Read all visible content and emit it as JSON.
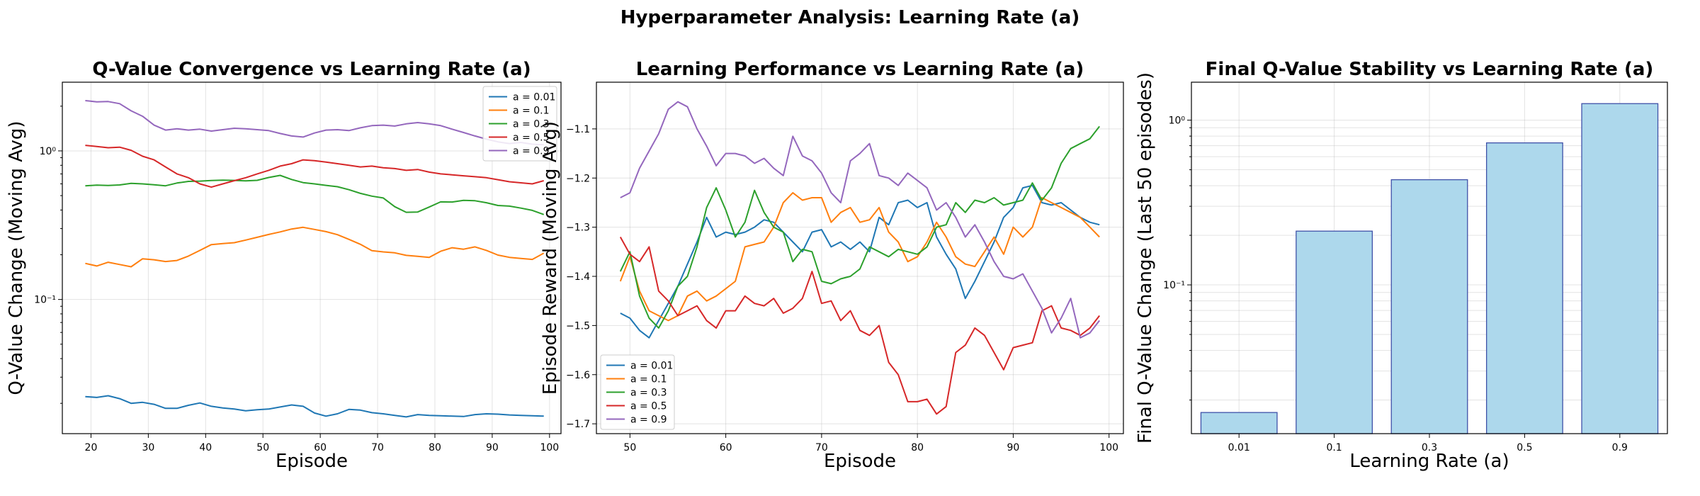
{
  "suptitle": "Hyperparameter Analysis: Learning Rate (a)",
  "chart_data": [
    {
      "type": "line",
      "title": "Q-Value Convergence vs Learning Rate (a)",
      "xlabel": "Episode",
      "ylabel": "Q-Value Change (Moving Avg)",
      "xlim": [
        15,
        102
      ],
      "xticks": [
        20,
        30,
        40,
        50,
        60,
        70,
        80,
        90,
        100
      ],
      "ylim": [
        0.0125,
        2.9
      ],
      "yscale": "log",
      "yticks": [
        {
          "value": 0.1,
          "label": "10⁻¹"
        },
        {
          "value": 1,
          "label": "10⁰"
        }
      ],
      "grid": true,
      "legend": "top-right",
      "x": [
        19,
        21,
        23,
        25,
        27,
        29,
        31,
        33,
        35,
        37,
        39,
        41,
        43,
        45,
        47,
        49,
        51,
        53,
        55,
        57,
        59,
        61,
        63,
        65,
        67,
        69,
        71,
        73,
        75,
        77,
        79,
        81,
        83,
        85,
        87,
        89,
        91,
        93,
        95,
        97,
        99
      ],
      "series": [
        {
          "name": "a = 0.01",
          "color": "#1f77b4",
          "values": [
            0.0222,
            0.0219,
            0.0225,
            0.0215,
            0.02,
            0.0203,
            0.0197,
            0.0185,
            0.0185,
            0.0194,
            0.0201,
            0.0191,
            0.0186,
            0.0183,
            0.0178,
            0.0181,
            0.0183,
            0.0189,
            0.0195,
            0.0191,
            0.0172,
            0.0164,
            0.017,
            0.0182,
            0.018,
            0.0173,
            0.017,
            0.0166,
            0.0162,
            0.0168,
            0.0166,
            0.0165,
            0.0164,
            0.0163,
            0.0168,
            0.017,
            0.0169,
            0.0167,
            0.0166,
            0.0165,
            0.0164
          ]
        },
        {
          "name": "a = 0.1",
          "color": "#ff7f0e",
          "values": [
            0.175,
            0.168,
            0.178,
            0.172,
            0.166,
            0.188,
            0.185,
            0.18,
            0.183,
            0.196,
            0.214,
            0.234,
            0.238,
            0.241,
            0.251,
            0.262,
            0.274,
            0.285,
            0.298,
            0.306,
            0.296,
            0.286,
            0.273,
            0.254,
            0.235,
            0.213,
            0.209,
            0.206,
            0.198,
            0.195,
            0.192,
            0.211,
            0.223,
            0.218,
            0.226,
            0.214,
            0.199,
            0.192,
            0.189,
            0.186,
            0.205
          ]
        },
        {
          "name": "a = 0.3",
          "color": "#2ca02c",
          "values": [
            0.582,
            0.588,
            0.585,
            0.59,
            0.605,
            0.6,
            0.592,
            0.582,
            0.608,
            0.623,
            0.626,
            0.632,
            0.636,
            0.633,
            0.628,
            0.634,
            0.662,
            0.684,
            0.642,
            0.612,
            0.6,
            0.586,
            0.574,
            0.548,
            0.518,
            0.496,
            0.482,
            0.421,
            0.386,
            0.388,
            0.419,
            0.454,
            0.453,
            0.465,
            0.462,
            0.448,
            0.429,
            0.425,
            0.412,
            0.398,
            0.373
          ]
        },
        {
          "name": "a = 0.5",
          "color": "#d62728",
          "values": [
            1.09,
            1.07,
            1.05,
            1.06,
            1.01,
            0.92,
            0.87,
            0.78,
            0.7,
            0.66,
            0.6,
            0.57,
            0.6,
            0.63,
            0.66,
            0.7,
            0.74,
            0.79,
            0.82,
            0.87,
            0.86,
            0.84,
            0.82,
            0.8,
            0.78,
            0.79,
            0.77,
            0.76,
            0.74,
            0.75,
            0.72,
            0.7,
            0.69,
            0.68,
            0.67,
            0.66,
            0.64,
            0.62,
            0.61,
            0.6,
            0.63
          ]
        },
        {
          "name": "a = 0.9",
          "color": "#9467bd",
          "values": [
            2.18,
            2.14,
            2.15,
            2.08,
            1.86,
            1.71,
            1.49,
            1.38,
            1.41,
            1.38,
            1.4,
            1.36,
            1.39,
            1.42,
            1.41,
            1.39,
            1.37,
            1.31,
            1.26,
            1.24,
            1.32,
            1.38,
            1.39,
            1.37,
            1.43,
            1.48,
            1.49,
            1.47,
            1.52,
            1.55,
            1.52,
            1.48,
            1.4,
            1.33,
            1.26,
            1.2,
            1.15,
            1.12,
            1.14,
            1.11,
            1.1
          ]
        }
      ]
    },
    {
      "type": "line",
      "title": "Learning Performance vs Learning Rate (a)",
      "xlabel": "Episode",
      "ylabel": "Episode Reward (Moving Avg)",
      "xlim": [
        46.5,
        101.5
      ],
      "xticks": [
        50,
        60,
        70,
        80,
        90,
        100
      ],
      "ylim": [
        -1.72,
        -1.005
      ],
      "yticks": [
        -1.1,
        -1.2,
        -1.3,
        -1.4,
        -1.5,
        -1.6,
        -1.7
      ],
      "grid": true,
      "legend": "bottom-left",
      "x": [
        49,
        50,
        51,
        52,
        53,
        54,
        55,
        56,
        57,
        58,
        59,
        60,
        61,
        62,
        63,
        64,
        65,
        66,
        67,
        68,
        69,
        70,
        71,
        72,
        73,
        74,
        75,
        76,
        77,
        78,
        79,
        80,
        81,
        82,
        83,
        84,
        85,
        86,
        87,
        88,
        89,
        90,
        91,
        92,
        93,
        94,
        95,
        96,
        97,
        98,
        99
      ],
      "series": [
        {
          "name": "a = 0.01",
          "color": "#1f77b4",
          "values": [
            -1.475,
            -1.485,
            -1.51,
            -1.525,
            -1.49,
            -1.455,
            -1.42,
            -1.375,
            -1.33,
            -1.28,
            -1.32,
            -1.31,
            -1.315,
            -1.31,
            -1.3,
            -1.285,
            -1.29,
            -1.31,
            -1.33,
            -1.35,
            -1.31,
            -1.305,
            -1.34,
            -1.33,
            -1.345,
            -1.33,
            -1.35,
            -1.28,
            -1.295,
            -1.25,
            -1.245,
            -1.26,
            -1.25,
            -1.32,
            -1.355,
            -1.385,
            -1.445,
            -1.41,
            -1.37,
            -1.33,
            -1.28,
            -1.26,
            -1.22,
            -1.215,
            -1.25,
            -1.255,
            -1.25,
            -1.265,
            -1.28,
            -1.29,
            -1.295
          ]
        },
        {
          "name": "a = 0.1",
          "color": "#ff7f0e",
          "values": [
            -1.41,
            -1.36,
            -1.43,
            -1.47,
            -1.48,
            -1.49,
            -1.48,
            -1.44,
            -1.43,
            -1.45,
            -1.44,
            -1.425,
            -1.41,
            -1.34,
            -1.335,
            -1.33,
            -1.3,
            -1.25,
            -1.23,
            -1.245,
            -1.24,
            -1.24,
            -1.29,
            -1.27,
            -1.26,
            -1.29,
            -1.285,
            -1.26,
            -1.31,
            -1.33,
            -1.37,
            -1.36,
            -1.33,
            -1.29,
            -1.32,
            -1.36,
            -1.375,
            -1.38,
            -1.35,
            -1.32,
            -1.355,
            -1.3,
            -1.32,
            -1.3,
            -1.24,
            -1.25,
            -1.26,
            -1.27,
            -1.28,
            -1.3,
            -1.32
          ]
        },
        {
          "name": "a = 0.3",
          "color": "#2ca02c",
          "values": [
            -1.39,
            -1.35,
            -1.44,
            -1.485,
            -1.505,
            -1.47,
            -1.42,
            -1.4,
            -1.34,
            -1.26,
            -1.22,
            -1.265,
            -1.32,
            -1.29,
            -1.225,
            -1.27,
            -1.3,
            -1.31,
            -1.37,
            -1.345,
            -1.35,
            -1.41,
            -1.415,
            -1.405,
            -1.4,
            -1.385,
            -1.34,
            -1.35,
            -1.36,
            -1.345,
            -1.35,
            -1.355,
            -1.34,
            -1.3,
            -1.295,
            -1.25,
            -1.27,
            -1.245,
            -1.25,
            -1.24,
            -1.255,
            -1.25,
            -1.245,
            -1.21,
            -1.245,
            -1.22,
            -1.17,
            -1.14,
            -1.13,
            -1.12,
            -1.095
          ]
        },
        {
          "name": "a = 0.5",
          "color": "#d62728",
          "values": [
            -1.32,
            -1.355,
            -1.37,
            -1.34,
            -1.43,
            -1.45,
            -1.48,
            -1.47,
            -1.46,
            -1.49,
            -1.505,
            -1.47,
            -1.47,
            -1.44,
            -1.455,
            -1.46,
            -1.445,
            -1.475,
            -1.465,
            -1.445,
            -1.39,
            -1.455,
            -1.45,
            -1.49,
            -1.47,
            -1.51,
            -1.52,
            -1.5,
            -1.575,
            -1.6,
            -1.655,
            -1.655,
            -1.65,
            -1.68,
            -1.665,
            -1.555,
            -1.54,
            -1.505,
            -1.52,
            -1.555,
            -1.59,
            -1.545,
            -1.54,
            -1.535,
            -1.47,
            -1.46,
            -1.505,
            -1.51,
            -1.52,
            -1.505,
            -1.48
          ]
        },
        {
          "name": "a = 0.9",
          "color": "#9467bd",
          "values": [
            -1.24,
            -1.23,
            -1.18,
            -1.145,
            -1.11,
            -1.06,
            -1.045,
            -1.055,
            -1.1,
            -1.135,
            -1.175,
            -1.15,
            -1.15,
            -1.155,
            -1.17,
            -1.16,
            -1.18,
            -1.195,
            -1.115,
            -1.155,
            -1.165,
            -1.19,
            -1.23,
            -1.25,
            -1.165,
            -1.15,
            -1.13,
            -1.195,
            -1.2,
            -1.215,
            -1.19,
            -1.205,
            -1.22,
            -1.265,
            -1.25,
            -1.28,
            -1.32,
            -1.295,
            -1.33,
            -1.37,
            -1.4,
            -1.405,
            -1.395,
            -1.43,
            -1.465,
            -1.515,
            -1.485,
            -1.445,
            -1.525,
            -1.515,
            -1.49
          ]
        }
      ]
    },
    {
      "type": "bar",
      "title": "Final Q-Value Stability vs Learning Rate (a)",
      "xlabel": "Learning Rate (a)",
      "ylabel": "Final Q-Value Change (Last 50 episodes)",
      "categories": [
        "0.01",
        "0.1",
        "0.3",
        "0.5",
        "0.9"
      ],
      "values": [
        0.0168,
        0.212,
        0.435,
        0.728,
        1.26
      ],
      "ylim": [
        0.0125,
        1.7
      ],
      "yscale": "log",
      "yticks": [
        {
          "value": 0.1,
          "label": "10⁻¹"
        },
        {
          "value": 1,
          "label": "10⁰"
        }
      ],
      "bar_color": "#add8ec",
      "bar_edge_color": "#3f51a8",
      "grid": true
    }
  ]
}
